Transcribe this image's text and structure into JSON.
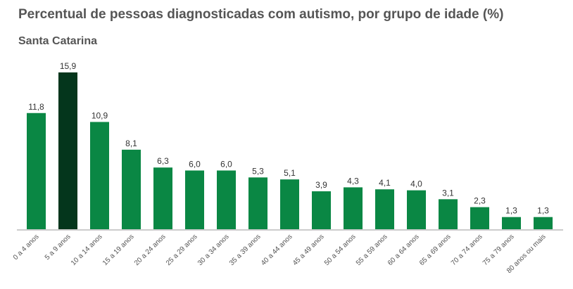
{
  "chart_data": {
    "type": "bar",
    "title": "Percentual de pessoas diagnosticadas com autismo, por grupo de idade (%)",
    "subtitle": "Santa Catarina",
    "xlabel": "",
    "ylabel": "",
    "categories": [
      "0 a 4 anos",
      "5 a 9 anos",
      "10 a 14 anos",
      "15 a 19 anos",
      "20 a 24 anos",
      "25 a 29 anos",
      "30 a 34 anos",
      "35 a 39 anos",
      "40 a 44 anos",
      "45 a 49 anos",
      "50 a 54 anos",
      "55 a 59 anos",
      "60 a 64 anos",
      "65 a 69 anos",
      "70 a 74 anos",
      "75 a 79 anos",
      "80 anos ou mais"
    ],
    "values": [
      11.8,
      15.9,
      10.9,
      8.1,
      6.3,
      6.0,
      6.0,
      5.3,
      5.1,
      3.9,
      4.3,
      4.1,
      4.0,
      3.1,
      2.3,
      1.3,
      1.3
    ],
    "value_labels": [
      "11,8",
      "15,9",
      "10,9",
      "8,1",
      "6,3",
      "6,0",
      "6,0",
      "5,3",
      "5,1",
      "3,9",
      "4,3",
      "4,1",
      "4,0",
      "3,1",
      "2,3",
      "1,3",
      "1,3"
    ],
    "highlight_index": 1,
    "ylim": [
      0,
      16
    ],
    "grid": false,
    "colors": {
      "bar": "#0a8744",
      "highlight": "#04361c",
      "axis": "#cccccc",
      "text": "#333333",
      "tick": "#555555"
    }
  }
}
